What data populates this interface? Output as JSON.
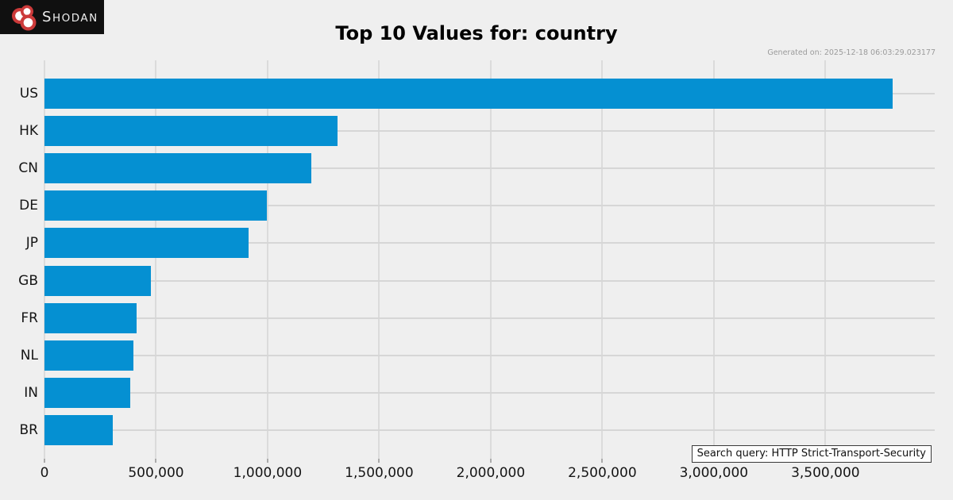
{
  "logo": {
    "brand_first_letter": "S",
    "brand_rest": "HODAN"
  },
  "header": {
    "title": "Top 10 Values for: country",
    "generated_on": "Generated on: 2025-12-18 06:03:29.023177"
  },
  "footer": {
    "search_query": "Search query: HTTP Strict-Transport-Security"
  },
  "colors": {
    "bar": "#0590d2",
    "background": "#efefef",
    "grid_vertical": "#dbdbdb",
    "grid_horizontal": "#d6d6d6",
    "logo_background": "#101010",
    "logo_red": "#cc3a3a",
    "generated_text": "#9b9b9b"
  },
  "chart_data": {
    "type": "bar",
    "orientation": "horizontal",
    "title": "Top 10 Values for: country",
    "xlabel": "",
    "ylabel": "",
    "categories": [
      "US",
      "HK",
      "CN",
      "DE",
      "JP",
      "GB",
      "FR",
      "NL",
      "IN",
      "BR"
    ],
    "values": [
      3800000,
      1315000,
      1196000,
      995000,
      913000,
      477000,
      413000,
      399000,
      384000,
      307000
    ],
    "xlim": [
      0,
      3990000
    ],
    "x_tick_values": [
      0,
      500000,
      1000000,
      1500000,
      2000000,
      2500000,
      3000000,
      3500000
    ],
    "x_tick_labels": [
      "0",
      "500,000",
      "1,000,000",
      "1,500,000",
      "2,000,000",
      "2,500,000",
      "3,000,000",
      "3,500,000"
    ],
    "grid": true,
    "legend": false
  }
}
